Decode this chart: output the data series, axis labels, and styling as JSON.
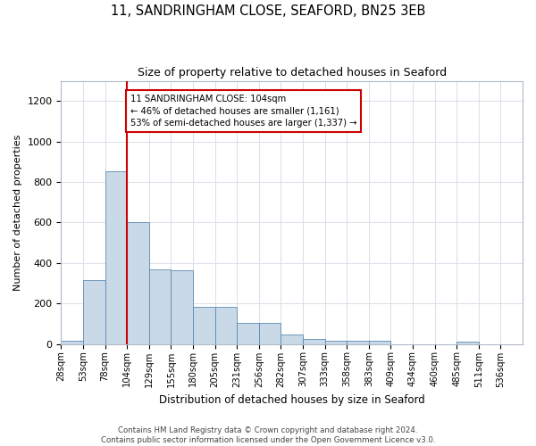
{
  "title_line1": "11, SANDRINGHAM CLOSE, SEAFORD, BN25 3EB",
  "title_line2": "Size of property relative to detached houses in Seaford",
  "xlabel": "Distribution of detached houses by size in Seaford",
  "ylabel": "Number of detached properties",
  "footnote": "Contains HM Land Registry data © Crown copyright and database right 2024.\nContains public sector information licensed under the Open Government Licence v3.0.",
  "annotation_line1": "11 SANDRINGHAM CLOSE: 104sqm",
  "annotation_line2": "← 46% of detached houses are smaller (1,161)",
  "annotation_line3": "53% of semi-detached houses are larger (1,337) →",
  "bar_color": "#c9d9e8",
  "bar_edge_color": "#5a8ab0",
  "highlight_line_color": "#cc0000",
  "highlight_bin_index": 3,
  "categories": [
    "28sqm",
    "53sqm",
    "78sqm",
    "104sqm",
    "129sqm",
    "155sqm",
    "180sqm",
    "205sqm",
    "231sqm",
    "256sqm",
    "282sqm",
    "307sqm",
    "333sqm",
    "358sqm",
    "383sqm",
    "409sqm",
    "434sqm",
    "460sqm",
    "485sqm",
    "511sqm",
    "536sqm"
  ],
  "n_bins": 21,
  "values": [
    15,
    315,
    855,
    600,
    370,
    365,
    185,
    185,
    105,
    105,
    45,
    25,
    15,
    15,
    15,
    0,
    0,
    0,
    10,
    0,
    0
  ],
  "ylim": [
    0,
    1300
  ],
  "yticks": [
    0,
    200,
    400,
    600,
    800,
    1000,
    1200
  ],
  "bg_color": "#ffffff",
  "grid_color": "#d8e0e8",
  "annotation_box_color": "#ffffff",
  "annotation_box_edge": "#cc0000"
}
